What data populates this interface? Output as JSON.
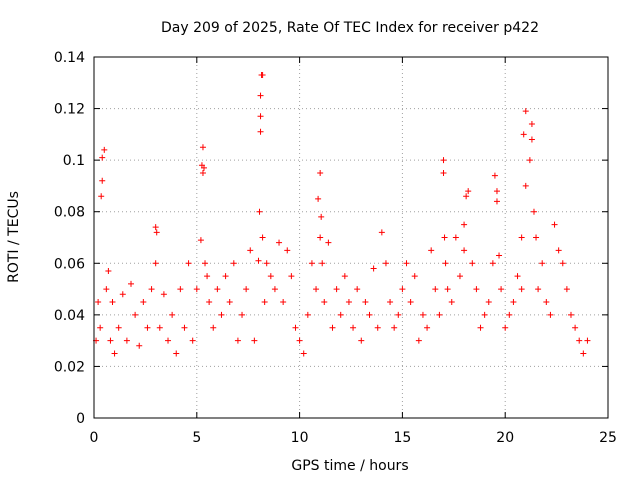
{
  "chart_data": {
    "type": "scatter",
    "title": "Day 209 of 2025, Rate Of TEC Index for receiver p422",
    "xlabel": "GPS time / hours",
    "ylabel": "ROTI / TECUs",
    "xlim": [
      0,
      25
    ],
    "ylim": [
      0,
      0.14
    ],
    "xticks": [
      "0",
      "5",
      "10",
      "15",
      "20",
      "25"
    ],
    "yticks": [
      "0",
      "0.02",
      "0.04",
      "0.06",
      "0.08",
      "0.1",
      "0.12",
      "0.14"
    ],
    "grid": true,
    "marker": "plus",
    "marker_color": "#ff0000",
    "series": [
      {
        "x": [
          0.1,
          0.2,
          0.3,
          0.35,
          0.4,
          0.4,
          0.5,
          0.6,
          0.7,
          0.8,
          0.9,
          1.0,
          1.2,
          1.4,
          1.6,
          1.8,
          2.0,
          2.2,
          2.4,
          2.6,
          2.8,
          3.0,
          3.0,
          3.05,
          3.2,
          3.4,
          3.6,
          3.8,
          4.0,
          4.2,
          4.4,
          4.6,
          4.8,
          5.0,
          5.2,
          5.25,
          5.3,
          5.3,
          5.35,
          5.4,
          5.5,
          5.6,
          5.8,
          6.0,
          6.2,
          6.4,
          6.6,
          6.8,
          7.0,
          7.2,
          7.4,
          7.6,
          7.8,
          8.0,
          8.05,
          8.1,
          8.1,
          8.1,
          8.15,
          8.2,
          8.2,
          8.3,
          8.4,
          8.6,
          8.8,
          9.0,
          9.2,
          9.4,
          9.6,
          9.8,
          10.0,
          10.2,
          10.4,
          10.6,
          10.8,
          10.9,
          11.0,
          11.0,
          11.05,
          11.1,
          11.2,
          11.4,
          11.6,
          11.8,
          12.0,
          12.2,
          12.4,
          12.6,
          12.8,
          13.0,
          13.2,
          13.4,
          13.6,
          13.8,
          14.0,
          14.2,
          14.4,
          14.6,
          14.8,
          15.0,
          15.2,
          15.4,
          15.6,
          15.8,
          16.0,
          16.2,
          16.4,
          16.6,
          16.8,
          17.0,
          17.0,
          17.05,
          17.1,
          17.2,
          17.4,
          17.6,
          17.8,
          18.0,
          18.0,
          18.1,
          18.2,
          18.4,
          18.6,
          18.8,
          19.0,
          19.2,
          19.4,
          19.5,
          19.6,
          19.6,
          19.7,
          19.8,
          20.0,
          20.2,
          20.4,
          20.6,
          20.8,
          20.8,
          20.9,
          21.0,
          21.0,
          21.2,
          21.3,
          21.3,
          21.4,
          21.5,
          21.6,
          21.8,
          22.0,
          22.2,
          22.4,
          22.6,
          22.8,
          23.0,
          23.2,
          23.4,
          23.6,
          23.8,
          24.0
        ],
        "y": [
          0.03,
          0.045,
          0.035,
          0.086,
          0.092,
          0.101,
          0.104,
          0.05,
          0.057,
          0.03,
          0.045,
          0.025,
          0.035,
          0.048,
          0.03,
          0.052,
          0.04,
          0.028,
          0.045,
          0.035,
          0.05,
          0.074,
          0.06,
          0.072,
          0.035,
          0.048,
          0.03,
          0.04,
          0.025,
          0.05,
          0.035,
          0.06,
          0.03,
          0.05,
          0.069,
          0.098,
          0.105,
          0.095,
          0.097,
          0.06,
          0.055,
          0.045,
          0.035,
          0.05,
          0.04,
          0.055,
          0.045,
          0.06,
          0.03,
          0.04,
          0.05,
          0.065,
          0.03,
          0.061,
          0.08,
          0.111,
          0.117,
          0.125,
          0.133,
          0.133,
          0.07,
          0.045,
          0.06,
          0.055,
          0.05,
          0.068,
          0.045,
          0.065,
          0.055,
          0.035,
          0.03,
          0.025,
          0.04,
          0.06,
          0.05,
          0.085,
          0.095,
          0.07,
          0.078,
          0.06,
          0.045,
          0.068,
          0.035,
          0.05,
          0.04,
          0.055,
          0.045,
          0.035,
          0.05,
          0.03,
          0.045,
          0.04,
          0.058,
          0.035,
          0.072,
          0.06,
          0.045,
          0.035,
          0.04,
          0.05,
          0.06,
          0.045,
          0.055,
          0.03,
          0.04,
          0.035,
          0.065,
          0.05,
          0.04,
          0.095,
          0.1,
          0.07,
          0.06,
          0.05,
          0.045,
          0.07,
          0.055,
          0.065,
          0.075,
          0.086,
          0.088,
          0.06,
          0.05,
          0.035,
          0.04,
          0.045,
          0.06,
          0.094,
          0.088,
          0.084,
          0.063,
          0.05,
          0.035,
          0.04,
          0.045,
          0.055,
          0.05,
          0.07,
          0.11,
          0.119,
          0.09,
          0.1,
          0.114,
          0.108,
          0.08,
          0.07,
          0.05,
          0.06,
          0.045,
          0.04,
          0.075,
          0.065,
          0.06,
          0.05,
          0.04,
          0.035,
          0.03,
          0.025,
          0.03
        ]
      }
    ]
  }
}
